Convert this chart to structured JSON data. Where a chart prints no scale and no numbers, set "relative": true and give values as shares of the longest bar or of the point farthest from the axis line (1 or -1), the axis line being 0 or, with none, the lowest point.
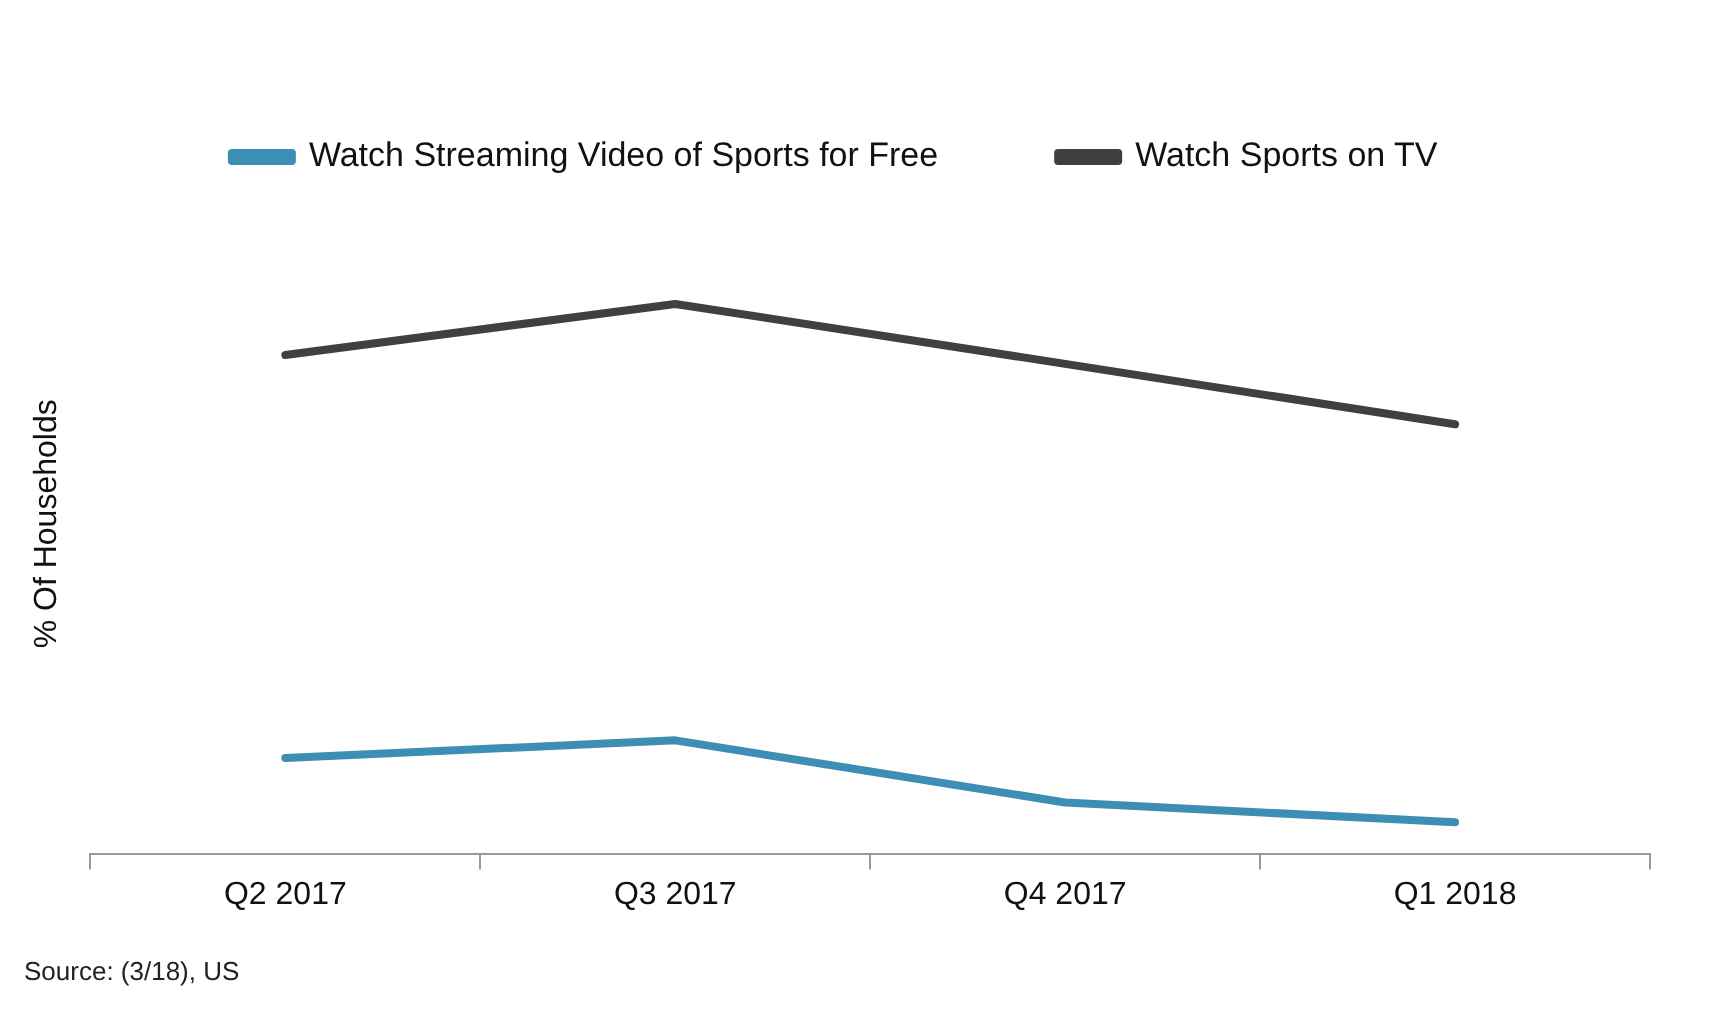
{
  "chart_data": {
    "type": "line",
    "ylabel": "% Of Households",
    "relative": true,
    "legend": "top",
    "grid": false,
    "marker": "none",
    "line_style": "solid",
    "categories": [
      "Q2 2017",
      "Q3 2017",
      "Q4 2017",
      "Q1 2018"
    ],
    "series": [
      {
        "name": "Watch Streaming Video of Sports for Free",
        "color": "#3d8eb4",
        "values": [
          0.174,
          0.206,
          0.093,
          0.057
        ]
      },
      {
        "name": "Watch Sports on TV",
        "color": "#404040",
        "values": [
          0.907,
          1,
          0.891,
          0.781
        ]
      }
    ],
    "annotations": [
      "Source: (3/18), US"
    ]
  }
}
